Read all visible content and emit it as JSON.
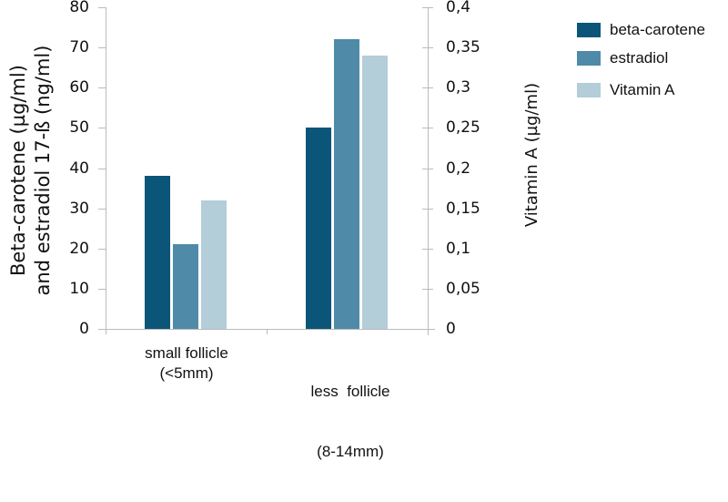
{
  "chart_data": {
    "type": "bar",
    "title": "",
    "categories": [
      "small follicle\n(<5mm)",
      "less  follicle\n(8-14mm)"
    ],
    "series": [
      {
        "name": "beta-carotene",
        "axis": "left",
        "unit": "µg/ml",
        "values": [
          38,
          50
        ],
        "color": "#0b5578"
      },
      {
        "name": "estradiol",
        "axis": "left",
        "unit": "ng/ml",
        "values": [
          21,
          72
        ],
        "color": "#4f8aa8"
      },
      {
        "name": "Vitamin A",
        "axis": "right",
        "unit": "µg/ml",
        "values": [
          0.16,
          0.34
        ],
        "color": "#b3cdd9"
      }
    ],
    "ylabel": "Beta-carotene (µg/ml) and estradiol 17-ß (ng/ml)",
    "ylabel_right": "Vitamin A (µg/ml)",
    "xlabel": "",
    "ylim": [
      0,
      80
    ],
    "ylim_right": [
      0,
      0.4
    ],
    "yticks": [
      "0",
      "10",
      "20",
      "30",
      "40",
      "50",
      "60",
      "70",
      "80"
    ],
    "yticks_right": [
      "0",
      "0,05",
      "0,1",
      "0,15",
      "0,2",
      "0,25",
      "0,3",
      "0,35",
      "0,4"
    ],
    "grid": false,
    "legend_position": "right"
  },
  "axes": {
    "left_title_line1": "Beta-carotene (µg/ml)",
    "left_title_line2": "and estradiol 17-ß (ng/ml)",
    "right_title": "Vitamin A (µg/ml)"
  },
  "categories": {
    "c0_line1": "small follicle",
    "c0_line2": "(<5mm)",
    "c1_line1": "less  follicle",
    "c1_line2": "(8-14mm)"
  },
  "legend": [
    {
      "label": "beta-carotene",
      "color": "#0b5578"
    },
    {
      "label": "estradiol",
      "color": "#4f8aa8"
    },
    {
      "label": "Vitamin A",
      "color": "#b3cdd9"
    }
  ]
}
